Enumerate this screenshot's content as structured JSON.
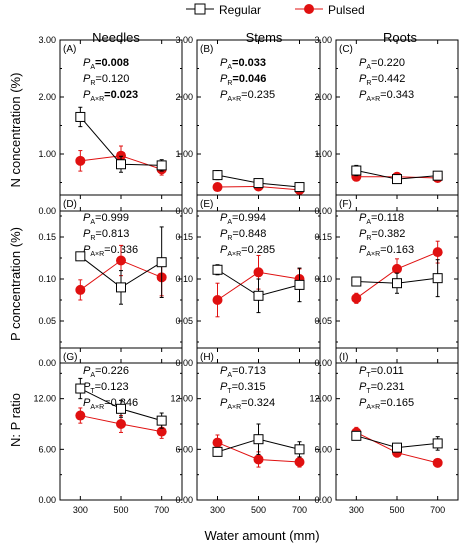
{
  "legend": {
    "placement": "top-center",
    "entries": [
      {
        "label": "Regular",
        "marker": "open-square",
        "color": "#000000"
      },
      {
        "label": "Pulsed",
        "marker": "filled-circle",
        "color": "#e01010"
      }
    ]
  },
  "colors": {
    "regular": "#000000",
    "pulsed": "#e01010"
  },
  "columns": [
    "Needles",
    "Stems",
    "Roots"
  ],
  "row_labels": [
    "N concentration (%)",
    "P concentration (%)",
    "N: P ratio"
  ],
  "xlabel": "Water amount (mm)",
  "chart_data": [
    {
      "type": "line",
      "panel": "(A)",
      "column": "Needles",
      "x": [
        300,
        500,
        700
      ],
      "ylim": [
        0,
        3.0
      ],
      "yticks": [
        "0.00",
        "1.00",
        "2.00",
        "3.00"
      ],
      "minor_step": 0.5,
      "series": [
        {
          "name": "Regular",
          "values": [
            1.65,
            0.82,
            0.8
          ],
          "err": [
            0.17,
            0.14,
            0.1
          ]
        },
        {
          "name": "Pulsed",
          "values": [
            0.88,
            0.97,
            0.73
          ],
          "err": [
            0.18,
            0.17,
            0.1
          ]
        }
      ],
      "stats": [
        {
          "sym": "P",
          "sub": "A",
          "val": "0.008",
          "bold": true
        },
        {
          "sym": "P",
          "sub": "R",
          "val": "0.120",
          "bold": false
        },
        {
          "sym": "P",
          "sub": "A×R",
          "val": "0.023",
          "bold": true
        }
      ]
    },
    {
      "type": "line",
      "panel": "(B)",
      "column": "Stems",
      "x": [
        300,
        500,
        700
      ],
      "ylim": [
        0,
        3.0
      ],
      "yticks": [
        "0.00",
        "1.00",
        "2.00",
        "3.00"
      ],
      "minor_step": 0.5,
      "series": [
        {
          "name": "Regular",
          "values": [
            0.63,
            0.49,
            0.42
          ],
          "err": [
            0.08,
            0.05,
            0.04
          ]
        },
        {
          "name": "Pulsed",
          "values": [
            0.42,
            0.43,
            0.37
          ],
          "err": [
            0.05,
            0.04,
            0.04
          ]
        }
      ],
      "stats": [
        {
          "sym": "P",
          "sub": "A",
          "val": "0.033",
          "bold": true
        },
        {
          "sym": "P",
          "sub": "R",
          "val": "0.046",
          "bold": true
        },
        {
          "sym": "P",
          "sub": "A×R",
          "val": "0.235",
          "bold": false
        }
      ]
    },
    {
      "type": "line",
      "panel": "(C)",
      "column": "Roots",
      "x": [
        300,
        500,
        700
      ],
      "ylim": [
        0,
        3.0
      ],
      "yticks": [
        "0.00",
        "1.00",
        "2.00",
        "3.00"
      ],
      "minor_step": 0.5,
      "series": [
        {
          "name": "Regular",
          "values": [
            0.71,
            0.56,
            0.62
          ],
          "err": [
            0.09,
            0.06,
            0.05
          ]
        },
        {
          "name": "Pulsed",
          "values": [
            0.6,
            0.6,
            0.58
          ],
          "err": [
            0.06,
            0.05,
            0.05
          ]
        }
      ],
      "stats": [
        {
          "sym": "P",
          "sub": "A",
          "val": "0.220",
          "bold": false
        },
        {
          "sym": "P",
          "sub": "R",
          "val": "0.442",
          "bold": false
        },
        {
          "sym": "P",
          "sub": "A×R",
          "val": "0.343",
          "bold": false
        }
      ]
    },
    {
      "type": "line",
      "panel": "(D)",
      "column": "Needles",
      "x": [
        300,
        500,
        700
      ],
      "ylim": [
        0,
        0.2
      ],
      "yticks": [
        "0.00",
        "0.05",
        "0.10",
        "0.15"
      ],
      "minor_step": 0.025,
      "series": [
        {
          "name": "Regular",
          "values": [
            0.127,
            0.09,
            0.12
          ],
          "err": [
            0.004,
            0.02,
            0.042
          ]
        },
        {
          "name": "Pulsed",
          "values": [
            0.087,
            0.122,
            0.102
          ],
          "err": [
            0.012,
            0.018,
            0.022
          ]
        }
      ],
      "stats": [
        {
          "sym": "P",
          "sub": "A",
          "val": "0.999",
          "bold": false
        },
        {
          "sym": "P",
          "sub": "R",
          "val": "0.813",
          "bold": false
        },
        {
          "sym": "P",
          "sub": "A×R",
          "val": "0.336",
          "bold": false
        }
      ]
    },
    {
      "type": "line",
      "panel": "(E)",
      "column": "Stems",
      "x": [
        300,
        500,
        700
      ],
      "ylim": [
        0,
        0.2
      ],
      "yticks": [
        "0.00",
        "0.05",
        "0.10",
        "0.15"
      ],
      "minor_step": 0.025,
      "series": [
        {
          "name": "Regular",
          "values": [
            0.111,
            0.08,
            0.093
          ],
          "err": [
            0.006,
            0.02,
            0.02
          ]
        },
        {
          "name": "Pulsed",
          "values": [
            0.075,
            0.108,
            0.1
          ],
          "err": [
            0.02,
            0.02,
            0.012
          ]
        }
      ],
      "stats": [
        {
          "sym": "P",
          "sub": "A",
          "val": "0.994",
          "bold": false
        },
        {
          "sym": "P",
          "sub": "R",
          "val": "0.848",
          "bold": false
        },
        {
          "sym": "P",
          "sub": "A×R",
          "val": "0.285",
          "bold": false
        }
      ]
    },
    {
      "type": "line",
      "panel": "(F)",
      "column": "Roots",
      "x": [
        300,
        500,
        700
      ],
      "ylim": [
        0,
        0.2
      ],
      "yticks": [
        "0.00",
        "0.05",
        "0.10",
        "0.15"
      ],
      "minor_step": 0.025,
      "series": [
        {
          "name": "Regular",
          "values": [
            0.097,
            0.095,
            0.101
          ],
          "err": [
            0.005,
            0.012,
            0.022
          ]
        },
        {
          "name": "Pulsed",
          "values": [
            0.077,
            0.112,
            0.132
          ],
          "err": [
            0.006,
            0.012,
            0.013
          ]
        }
      ],
      "stats": [
        {
          "sym": "P",
          "sub": "A",
          "val": "0.118",
          "bold": false
        },
        {
          "sym": "P",
          "sub": "R",
          "val": "0.382",
          "bold": false
        },
        {
          "sym": "P",
          "sub": "A×R",
          "val": "0.163",
          "bold": false
        }
      ]
    },
    {
      "type": "line",
      "panel": "(G)",
      "column": "Needles",
      "x": [
        300,
        500,
        700
      ],
      "ylim": [
        0,
        18
      ],
      "yticks": [
        "0.00",
        "6.00",
        "12.00"
      ],
      "minor_step": 3,
      "series": [
        {
          "name": "Regular",
          "values": [
            13.2,
            10.8,
            9.4
          ],
          "err": [
            1.2,
            1.0,
            0.9
          ]
        },
        {
          "name": "Pulsed",
          "values": [
            10.0,
            9.0,
            8.1
          ],
          "err": [
            0.9,
            1.0,
            0.8
          ]
        }
      ],
      "stats": [
        {
          "sym": "P",
          "sub": "A",
          "val": "0.226",
          "bold": false
        },
        {
          "sym": "P",
          "sub": "T",
          "val": "0.123",
          "bold": false
        },
        {
          "sym": "P",
          "sub": "A×R",
          "val": "0.846",
          "bold": false
        }
      ]
    },
    {
      "type": "line",
      "panel": "(H)",
      "column": "Stems",
      "x": [
        300,
        500,
        700
      ],
      "ylim": [
        0,
        18
      ],
      "yticks": [
        "0.00",
        "6.00",
        "12.00"
      ],
      "minor_step": 3,
      "series": [
        {
          "name": "Regular",
          "values": [
            5.7,
            7.2,
            6.0
          ],
          "err": [
            0.4,
            1.8,
            0.9
          ]
        },
        {
          "name": "Pulsed",
          "values": [
            6.8,
            4.8,
            4.5
          ],
          "err": [
            0.9,
            0.9,
            0.6
          ]
        }
      ],
      "stats": [
        {
          "sym": "P",
          "sub": "A",
          "val": "0.713",
          "bold": false
        },
        {
          "sym": "P",
          "sub": "T",
          "val": "0.315",
          "bold": false
        },
        {
          "sym": "P",
          "sub": "A×R",
          "val": "0.324",
          "bold": false
        }
      ]
    },
    {
      "type": "line",
      "panel": "(I)",
      "column": "Roots",
      "x": [
        300,
        500,
        700
      ],
      "ylim": [
        0,
        18
      ],
      "yticks": [
        "0.00",
        "6.00",
        "12.00"
      ],
      "minor_step": 3,
      "series": [
        {
          "name": "Regular",
          "values": [
            7.6,
            6.2,
            6.7
          ],
          "err": [
            0.4,
            0.5,
            0.8
          ]
        },
        {
          "name": "Pulsed",
          "values": [
            8.0,
            5.6,
            4.4
          ],
          "err": [
            0.6,
            0.5,
            0.3
          ]
        }
      ],
      "stats": [
        {
          "sym": "P",
          "sub": "T",
          "val": "0.011",
          "bold": false
        },
        {
          "sym": "P",
          "sub": "T",
          "val": "0.231",
          "bold": false
        },
        {
          "sym": "P",
          "sub": "A×R",
          "val": "0.165",
          "bold": false
        }
      ]
    }
  ]
}
